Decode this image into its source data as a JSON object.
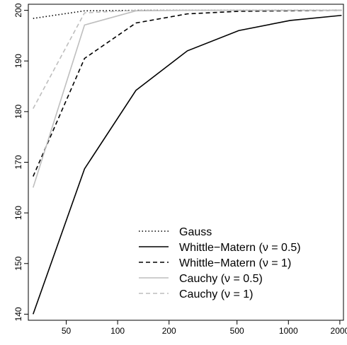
{
  "chart_data": {
    "type": "line",
    "title": "",
    "xlabel": "",
    "ylabel": "",
    "x_scale": "log",
    "xlim": [
      30,
      2100
    ],
    "ylim": [
      138.8,
      201.2
    ],
    "x_ticks": [
      50,
      100,
      200,
      500,
      1000,
      2000
    ],
    "x_tick_labels": [
      "50",
      "100",
      "200",
      "500",
      "1000",
      "2000"
    ],
    "y_ticks": [
      140,
      150,
      160,
      170,
      180,
      190,
      200
    ],
    "y_tick_labels": [
      "140",
      "150",
      "160",
      "170",
      "180",
      "190",
      "200"
    ],
    "grid": false,
    "legend_position": "bottom-right",
    "series": [
      {
        "name": "Gauss",
        "color": "#000000",
        "dash": "dotted",
        "points": [
          [
            32,
            198.4
          ],
          [
            64,
            199.9
          ],
          [
            128,
            200
          ],
          [
            256,
            200
          ],
          [
            512,
            200
          ],
          [
            1024,
            200
          ],
          [
            2048,
            200
          ]
        ]
      },
      {
        "name": "Whittle−Matern (ν = 0.5)",
        "color": "#000000",
        "dash": "solid",
        "points": [
          [
            32,
            140
          ],
          [
            64,
            168.7
          ],
          [
            128,
            184.2
          ],
          [
            256,
            192
          ],
          [
            512,
            196
          ],
          [
            1024,
            198
          ],
          [
            2048,
            199
          ]
        ]
      },
      {
        "name": "Whittle−Matern (ν = 1)",
        "color": "#000000",
        "dash": "dashed",
        "points": [
          [
            32,
            167.2
          ],
          [
            64,
            190.5
          ],
          [
            128,
            197.5
          ],
          [
            256,
            199.3
          ],
          [
            512,
            199.8
          ],
          [
            1024,
            199.9
          ],
          [
            2048,
            200
          ]
        ]
      },
      {
        "name": "Cauchy (ν = 0.5)",
        "color": "#bebebe",
        "dash": "solid",
        "points": [
          [
            32,
            165
          ],
          [
            64,
            197.1
          ],
          [
            128,
            199.9
          ],
          [
            256,
            200
          ],
          [
            512,
            200
          ],
          [
            1024,
            200
          ],
          [
            2048,
            200
          ]
        ]
      },
      {
        "name": "Cauchy (ν = 1)",
        "color": "#bebebe",
        "dash": "dashed",
        "points": [
          [
            32,
            180.6
          ],
          [
            64,
            199.5
          ],
          [
            128,
            200
          ],
          [
            256,
            200
          ],
          [
            512,
            200
          ],
          [
            1024,
            200
          ],
          [
            2048,
            200
          ]
        ]
      }
    ]
  }
}
